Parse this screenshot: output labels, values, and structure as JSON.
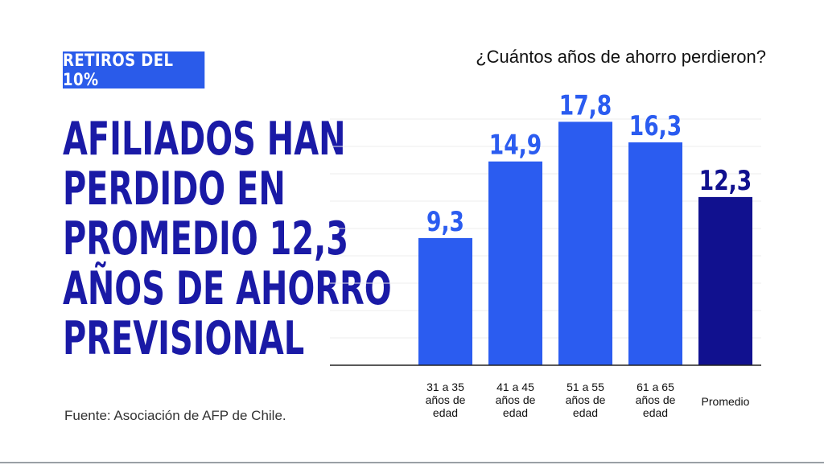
{
  "tag": "RETIROS DEL 10%",
  "headline": [
    "AFILIADOS HAN",
    "PERDIDO EN",
    "PROMEDIO 12,3",
    "AÑOS DE AHORRO",
    "PREVISIONAL"
  ],
  "source": "Fuente: Asociación de AFP de Chile.",
  "colors": {
    "bar": "#2b5cf0",
    "highlight": "#11118f",
    "headline": "#1a1aa6",
    "tag": "#2a5bea"
  },
  "chart_data": {
    "type": "bar",
    "title": "¿Cuántos años de ahorro perdieron?",
    "categories": [
      [
        "31 a 35",
        "años de",
        "edad"
      ],
      [
        "41 a 45",
        "años de",
        "edad"
      ],
      [
        "51 a 55",
        "años de",
        "edad"
      ],
      [
        "61 a 65",
        "años de",
        "edad"
      ],
      [
        "Promedio"
      ]
    ],
    "values": [
      9.3,
      14.9,
      17.8,
      16.3,
      12.3
    ],
    "value_labels": [
      "9,3",
      "14,9",
      "17,8",
      "16,3",
      "12,3"
    ],
    "highlight_index": 4,
    "ylim": [
      0,
      20
    ],
    "grid": true,
    "xlabel": "",
    "ylabel": ""
  }
}
